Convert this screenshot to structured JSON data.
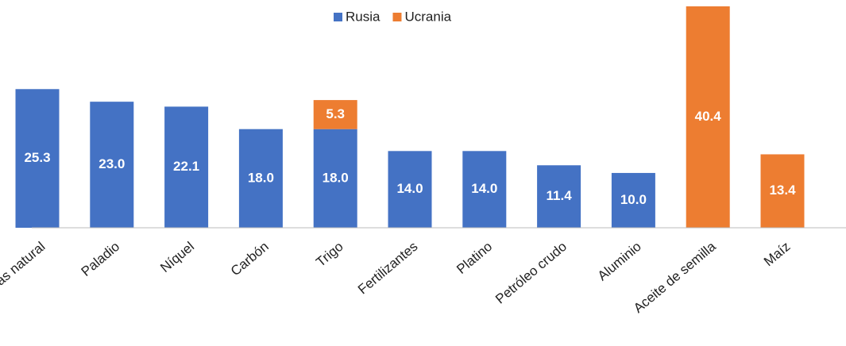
{
  "chart_data": {
    "type": "stacked_bar",
    "categories": [
      "Gas natural",
      "Paladio",
      "Níquel",
      "Carbón",
      "Trigo",
      "Fertilizantes",
      "Platino",
      "Petróleo crudo",
      "Aluminio",
      "Aceite de semilla",
      "Maíz"
    ],
    "series": [
      {
        "name": "Rusia",
        "color": "#4472c4",
        "values": [
          25.3,
          23.0,
          22.1,
          18.0,
          18.0,
          14.0,
          14.0,
          11.4,
          10.0,
          null,
          null
        ],
        "value_labels": [
          "25.3",
          "23.0",
          "22.1",
          "18.0",
          "18.0",
          "14.0",
          "14.0",
          "11.4",
          "10.0",
          null,
          null
        ]
      },
      {
        "name": "Ucrania",
        "color": "#ed7d31",
        "values": [
          null,
          null,
          null,
          null,
          5.3,
          null,
          null,
          null,
          null,
          40.4,
          13.4
        ],
        "value_labels": [
          null,
          null,
          null,
          null,
          "5.3",
          null,
          null,
          null,
          null,
          "40.4",
          "13.4"
        ]
      }
    ],
    "legend": "top"
  }
}
